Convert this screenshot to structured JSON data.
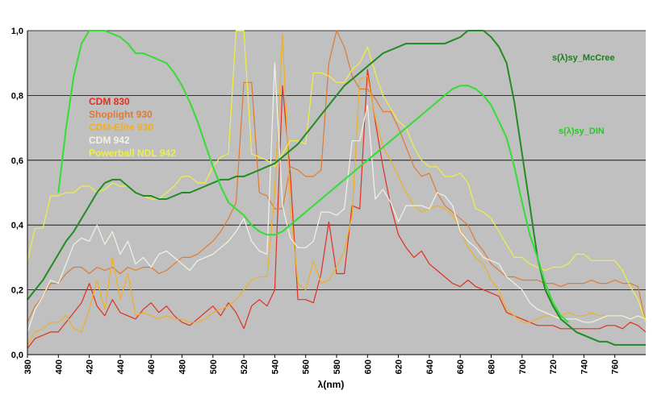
{
  "chart_data": {
    "type": "line",
    "xlabel": "λ(nm)",
    "ylabel": "",
    "xlim": [
      380,
      780
    ],
    "ylim": [
      0,
      1
    ],
    "grid": true,
    "x_ticks": [
      "380",
      "400",
      "420",
      "440",
      "460",
      "480",
      "500",
      "520",
      "540",
      "560",
      "580",
      "600",
      "620",
      "640",
      "660",
      "680",
      "700",
      "720",
      "740",
      "760"
    ],
    "y_ticks": [
      "0,0",
      "0,2",
      "0,4",
      "0,6",
      "0,8",
      "1,0"
    ],
    "legend_placement": "upper-left",
    "series": [
      {
        "name": "CDM 830",
        "color": "#e03020",
        "x": [
          380,
          385,
          390,
          395,
          400,
          405,
          410,
          415,
          420,
          425,
          430,
          435,
          440,
          445,
          450,
          455,
          460,
          465,
          470,
          475,
          480,
          485,
          490,
          495,
          500,
          505,
          510,
          515,
          520,
          525,
          530,
          535,
          540,
          545,
          550,
          555,
          560,
          565,
          570,
          575,
          580,
          585,
          590,
          595,
          600,
          605,
          610,
          615,
          620,
          625,
          630,
          635,
          640,
          645,
          650,
          655,
          660,
          665,
          670,
          675,
          680,
          685,
          690,
          695,
          700,
          705,
          710,
          715,
          720,
          725,
          730,
          735,
          740,
          745,
          750,
          755,
          760,
          765,
          770,
          775,
          780
        ],
        "y": [
          0.02,
          0.05,
          0.06,
          0.07,
          0.07,
          0.1,
          0.13,
          0.16,
          0.22,
          0.15,
          0.12,
          0.17,
          0.13,
          0.12,
          0.11,
          0.14,
          0.16,
          0.13,
          0.15,
          0.12,
          0.1,
          0.09,
          0.11,
          0.13,
          0.15,
          0.12,
          0.16,
          0.13,
          0.08,
          0.15,
          0.17,
          0.15,
          0.2,
          0.83,
          0.56,
          0.17,
          0.17,
          0.16,
          0.25,
          0.41,
          0.25,
          0.25,
          0.46,
          0.45,
          0.88,
          0.72,
          0.58,
          0.46,
          0.37,
          0.33,
          0.3,
          0.32,
          0.28,
          0.26,
          0.24,
          0.22,
          0.21,
          0.23,
          0.21,
          0.2,
          0.19,
          0.18,
          0.13,
          0.12,
          0.11,
          0.1,
          0.09,
          0.09,
          0.09,
          0.08,
          0.08,
          0.08,
          0.08,
          0.08,
          0.08,
          0.09,
          0.09,
          0.08,
          0.1,
          0.09,
          0.07
        ]
      },
      {
        "name": "Shoplight 930",
        "color": "#e07a30",
        "x": [
          380,
          385,
          390,
          395,
          400,
          405,
          410,
          415,
          420,
          425,
          430,
          435,
          440,
          445,
          450,
          455,
          460,
          465,
          470,
          475,
          480,
          485,
          490,
          495,
          500,
          505,
          510,
          515,
          520,
          525,
          530,
          535,
          540,
          545,
          550,
          555,
          560,
          565,
          570,
          575,
          580,
          585,
          590,
          595,
          600,
          605,
          610,
          615,
          620,
          625,
          630,
          635,
          640,
          645,
          650,
          655,
          660,
          665,
          670,
          675,
          680,
          685,
          690,
          695,
          700,
          705,
          710,
          715,
          720,
          725,
          730,
          735,
          740,
          745,
          750,
          755,
          760,
          765,
          770,
          775,
          780
        ],
        "y": [
          0.1,
          0.15,
          0.18,
          0.22,
          0.22,
          0.25,
          0.27,
          0.27,
          0.25,
          0.27,
          0.26,
          0.27,
          0.25,
          0.27,
          0.26,
          0.27,
          0.27,
          0.25,
          0.26,
          0.28,
          0.3,
          0.3,
          0.31,
          0.33,
          0.35,
          0.38,
          0.42,
          0.47,
          0.84,
          0.84,
          0.5,
          0.49,
          0.45,
          0.45,
          0.58,
          0.57,
          0.55,
          0.55,
          0.57,
          0.9,
          1.0,
          0.95,
          0.86,
          0.82,
          0.82,
          0.79,
          0.75,
          0.75,
          0.7,
          0.64,
          0.58,
          0.55,
          0.56,
          0.5,
          0.46,
          0.44,
          0.42,
          0.4,
          0.35,
          0.32,
          0.28,
          0.26,
          0.24,
          0.24,
          0.23,
          0.23,
          0.23,
          0.22,
          0.22,
          0.21,
          0.22,
          0.22,
          0.22,
          0.23,
          0.22,
          0.22,
          0.23,
          0.22,
          0.22,
          0.21,
          0.1
        ]
      },
      {
        "name": "CDM-Elite 930",
        "color": "#f0b020",
        "x": [
          380,
          385,
          390,
          395,
          400,
          405,
          410,
          415,
          420,
          425,
          430,
          435,
          440,
          445,
          450,
          455,
          460,
          465,
          470,
          475,
          480,
          485,
          490,
          495,
          500,
          505,
          510,
          515,
          520,
          525,
          530,
          535,
          540,
          545,
          550,
          555,
          560,
          565,
          570,
          575,
          580,
          585,
          590,
          595,
          600,
          605,
          610,
          615,
          620,
          625,
          630,
          635,
          640,
          645,
          650,
          655,
          660,
          665,
          670,
          675,
          680,
          685,
          690,
          695,
          700,
          705,
          710,
          715,
          720,
          725,
          730,
          735,
          740,
          745,
          750,
          755,
          760,
          765,
          770,
          775,
          780
        ],
        "y": [
          0.03,
          0.07,
          0.08,
          0.1,
          0.1,
          0.12,
          0.08,
          0.07,
          0.14,
          0.23,
          0.14,
          0.3,
          0.17,
          0.25,
          0.12,
          0.13,
          0.12,
          0.11,
          0.12,
          0.11,
          0.11,
          0.1,
          0.1,
          0.11,
          0.13,
          0.14,
          0.15,
          0.17,
          0.2,
          0.23,
          0.24,
          0.24,
          0.5,
          0.99,
          0.46,
          0.22,
          0.2,
          0.29,
          0.22,
          0.23,
          0.27,
          0.32,
          0.43,
          0.85,
          0.86,
          0.73,
          0.64,
          0.6,
          0.55,
          0.5,
          0.46,
          0.44,
          0.45,
          0.46,
          0.45,
          0.43,
          0.39,
          0.33,
          0.3,
          0.28,
          0.23,
          0.2,
          0.14,
          0.12,
          0.1,
          0.1,
          0.11,
          0.12,
          0.12,
          0.12,
          0.13,
          0.12,
          0.12,
          0.13,
          0.12,
          0.12,
          0.12,
          0.12,
          0.11,
          0.12,
          0.11
        ]
      },
      {
        "name": "CDM 942",
        "color": "#f2f2e6",
        "x": [
          380,
          385,
          390,
          395,
          400,
          405,
          410,
          415,
          420,
          425,
          430,
          435,
          440,
          445,
          450,
          455,
          460,
          465,
          470,
          475,
          480,
          485,
          490,
          495,
          500,
          505,
          510,
          515,
          520,
          525,
          530,
          535,
          540,
          545,
          550,
          555,
          560,
          565,
          570,
          575,
          580,
          585,
          590,
          595,
          600,
          605,
          610,
          615,
          620,
          625,
          630,
          635,
          640,
          645,
          650,
          655,
          660,
          665,
          670,
          675,
          680,
          685,
          690,
          695,
          700,
          705,
          710,
          715,
          720,
          725,
          730,
          735,
          740,
          745,
          750,
          755,
          760,
          765,
          770,
          775,
          780
        ],
        "y": [
          0.07,
          0.14,
          0.18,
          0.23,
          0.22,
          0.28,
          0.34,
          0.36,
          0.35,
          0.4,
          0.34,
          0.38,
          0.31,
          0.35,
          0.28,
          0.3,
          0.27,
          0.31,
          0.32,
          0.3,
          0.28,
          0.26,
          0.29,
          0.3,
          0.31,
          0.33,
          0.35,
          0.38,
          0.42,
          0.35,
          0.32,
          0.31,
          0.9,
          0.46,
          0.36,
          0.33,
          0.33,
          0.35,
          0.44,
          0.44,
          0.43,
          0.45,
          0.66,
          0.66,
          0.77,
          0.48,
          0.51,
          0.47,
          0.41,
          0.46,
          0.46,
          0.46,
          0.45,
          0.5,
          0.49,
          0.46,
          0.38,
          0.35,
          0.33,
          0.3,
          0.29,
          0.28,
          0.24,
          0.22,
          0.2,
          0.16,
          0.14,
          0.13,
          0.12,
          0.11,
          0.11,
          0.11,
          0.1,
          0.1,
          0.11,
          0.12,
          0.12,
          0.12,
          0.11,
          0.12,
          0.11
        ]
      },
      {
        "name": "Powerball NDL 942",
        "color": "#f0f040",
        "x": [
          380,
          385,
          390,
          395,
          400,
          405,
          410,
          415,
          420,
          425,
          430,
          435,
          440,
          445,
          450,
          455,
          460,
          465,
          470,
          475,
          480,
          485,
          490,
          495,
          500,
          505,
          510,
          515,
          520,
          525,
          530,
          535,
          540,
          545,
          550,
          555,
          560,
          565,
          570,
          575,
          580,
          585,
          590,
          595,
          600,
          605,
          610,
          615,
          620,
          625,
          630,
          635,
          640,
          645,
          650,
          655,
          660,
          665,
          670,
          675,
          680,
          685,
          690,
          695,
          700,
          705,
          710,
          715,
          720,
          725,
          730,
          735,
          740,
          745,
          750,
          755,
          760,
          765,
          770,
          775,
          780
        ],
        "y": [
          0.29,
          0.39,
          0.39,
          0.49,
          0.49,
          0.5,
          0.5,
          0.52,
          0.52,
          0.5,
          0.51,
          0.53,
          0.52,
          0.52,
          0.5,
          0.49,
          0.48,
          0.48,
          0.5,
          0.52,
          0.55,
          0.55,
          0.53,
          0.53,
          0.58,
          0.61,
          0.62,
          1.0,
          1.0,
          0.62,
          0.61,
          0.6,
          0.58,
          0.62,
          0.66,
          0.66,
          0.65,
          0.87,
          0.87,
          0.86,
          0.84,
          0.84,
          0.88,
          0.9,
          0.95,
          0.87,
          0.8,
          0.76,
          0.72,
          0.7,
          0.64,
          0.6,
          0.58,
          0.58,
          0.55,
          0.55,
          0.56,
          0.53,
          0.45,
          0.44,
          0.42,
          0.38,
          0.34,
          0.3,
          0.3,
          0.28,
          0.27,
          0.26,
          0.27,
          0.27,
          0.28,
          0.31,
          0.31,
          0.29,
          0.29,
          0.29,
          0.29,
          0.26,
          0.21,
          0.17,
          0.1
        ]
      },
      {
        "name": "s(λ)sy_McCree",
        "color": "#228b22",
        "x": [
          380,
          385,
          390,
          395,
          400,
          405,
          410,
          415,
          420,
          425,
          430,
          435,
          440,
          445,
          450,
          455,
          460,
          465,
          470,
          475,
          480,
          485,
          490,
          495,
          500,
          505,
          510,
          515,
          520,
          525,
          530,
          535,
          540,
          545,
          550,
          555,
          560,
          565,
          570,
          575,
          580,
          585,
          590,
          595,
          600,
          605,
          610,
          615,
          620,
          625,
          630,
          635,
          640,
          645,
          650,
          655,
          660,
          665,
          670,
          675,
          680,
          685,
          690,
          695,
          700,
          705,
          710,
          715,
          720,
          725,
          730,
          735,
          740,
          745,
          750,
          755,
          760,
          765,
          770,
          775,
          780
        ],
        "y": [
          0.17,
          0.2,
          0.23,
          0.27,
          0.31,
          0.35,
          0.38,
          0.42,
          0.46,
          0.5,
          0.53,
          0.54,
          0.54,
          0.52,
          0.5,
          0.49,
          0.49,
          0.48,
          0.48,
          0.49,
          0.5,
          0.5,
          0.51,
          0.52,
          0.53,
          0.54,
          0.54,
          0.55,
          0.55,
          0.56,
          0.57,
          0.58,
          0.59,
          0.61,
          0.63,
          0.65,
          0.68,
          0.71,
          0.74,
          0.77,
          0.8,
          0.83,
          0.85,
          0.87,
          0.89,
          0.91,
          0.93,
          0.94,
          0.95,
          0.96,
          0.96,
          0.96,
          0.96,
          0.96,
          0.96,
          0.97,
          0.98,
          1.0,
          1.0,
          1.0,
          0.98,
          0.95,
          0.9,
          0.78,
          0.62,
          0.46,
          0.3,
          0.2,
          0.15,
          0.11,
          0.09,
          0.07,
          0.06,
          0.05,
          0.04,
          0.04,
          0.03,
          0.03,
          0.03,
          0.03,
          0.03
        ]
      },
      {
        "name": "s(λ)sy_DIN",
        "color": "#33dd33",
        "x": [
          400,
          405,
          410,
          415,
          420,
          425,
          430,
          435,
          440,
          445,
          450,
          455,
          460,
          465,
          470,
          475,
          480,
          485,
          490,
          495,
          500,
          505,
          510,
          515,
          520,
          525,
          530,
          535,
          540,
          545,
          550,
          555,
          560,
          565,
          570,
          575,
          580,
          585,
          590,
          595,
          600,
          605,
          610,
          615,
          620,
          625,
          630,
          635,
          640,
          645,
          650,
          655,
          660,
          665,
          670,
          675,
          680,
          685,
          690,
          695,
          700,
          705,
          710,
          715,
          720,
          725,
          730
        ],
        "y": [
          0.5,
          0.7,
          0.86,
          0.96,
          1.0,
          1.0,
          1.0,
          0.99,
          0.98,
          0.96,
          0.93,
          0.93,
          0.92,
          0.91,
          0.9,
          0.87,
          0.83,
          0.78,
          0.72,
          0.65,
          0.58,
          0.52,
          0.47,
          0.45,
          0.43,
          0.4,
          0.38,
          0.37,
          0.37,
          0.38,
          0.4,
          0.42,
          0.44,
          0.46,
          0.48,
          0.5,
          0.52,
          0.54,
          0.56,
          0.58,
          0.6,
          0.62,
          0.64,
          0.66,
          0.68,
          0.7,
          0.72,
          0.74,
          0.76,
          0.78,
          0.8,
          0.82,
          0.83,
          0.83,
          0.82,
          0.8,
          0.77,
          0.72,
          0.67,
          0.58,
          0.47,
          0.37,
          0.3,
          0.22,
          0.16,
          0.12,
          0.1
        ]
      }
    ],
    "side_labels": [
      {
        "text": "s(λ)sy_McCree",
        "color": "#1a7f1a"
      },
      {
        "text": "s(λ)sy_DIN",
        "color": "#22cc22"
      }
    ]
  }
}
